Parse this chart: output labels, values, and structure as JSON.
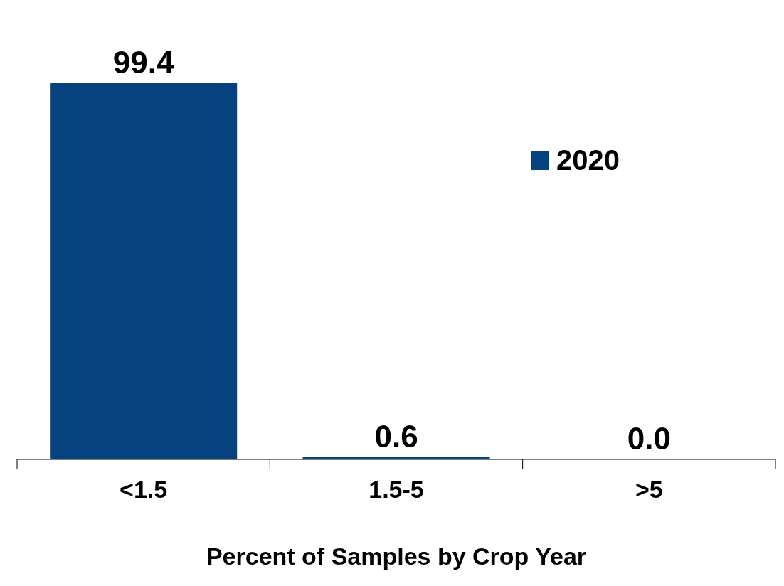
{
  "chart_data": {
    "type": "bar",
    "xlabel": "Percent of Samples by Crop Year",
    "categories": [
      "<1.5",
      "1.5-5",
      ">5"
    ],
    "series": [
      {
        "name": "2020",
        "color": "#06427f",
        "values": [
          99.4,
          0.6,
          0.0
        ],
        "value_labels": [
          "99.4",
          "0.6",
          "0.0"
        ]
      }
    ],
    "legend": "top right"
  }
}
